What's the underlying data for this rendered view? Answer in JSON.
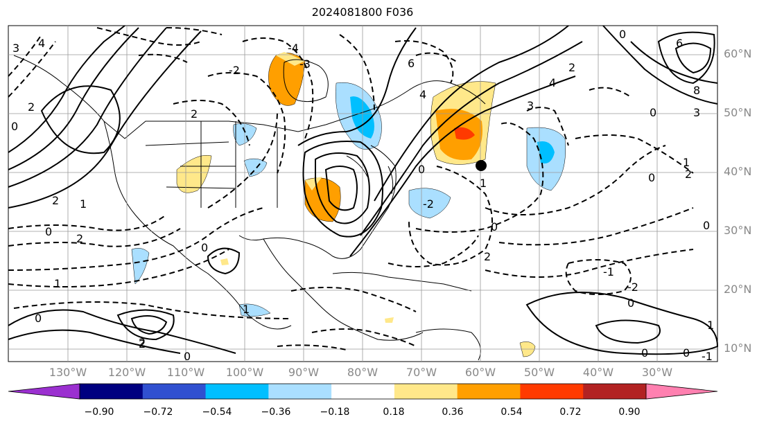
{
  "title": "2024081800 F036",
  "lat_labels": [
    "60°N",
    "50°N",
    "40°N",
    "30°N",
    "20°N",
    "10°N"
  ],
  "lon_labels": [
    "130°W",
    "120°W",
    "110°W",
    "100°W",
    "90°W",
    "80°W",
    "70°W",
    "60°W",
    "50°W",
    "40°W",
    "30°W"
  ],
  "colorbar": {
    "tick_labels": [
      "−0.90",
      "−0.72",
      "−0.54",
      "−0.36",
      "−0.18",
      "0.18",
      "0.36",
      "0.54",
      "0.72",
      "0.90"
    ],
    "colors": [
      "#9b30d0",
      "#000080",
      "#3050d0",
      "#00bfff",
      "#aadfff",
      "#ffffff",
      "#ffe88a",
      "#ff9f00",
      "#ff3a00",
      "#b22222",
      "#ff80b0"
    ]
  },
  "contour_labels": {
    "c1": "3",
    "c2": "4",
    "c3": "2",
    "c4": "0",
    "c5": "2",
    "c6": "1",
    "c7": "0",
    "c8": "2",
    "c9": "1",
    "c10": "0",
    "c11": "2",
    "c12": "0",
    "c13": "1",
    "c14": "2",
    "c15": "0",
    "c16": "-4",
    "c17": "-3",
    "c18": "-2",
    "c19": "6",
    "c20": "4",
    "c21": "3",
    "c22": "2",
    "c23": "0",
    "c24": "1",
    "c25": "-2",
    "c26": "0",
    "c27": "-1",
    "c28": "-2",
    "c29": "0",
    "c30": "2",
    "c31": "4",
    "c32": "6",
    "c33": "8",
    "c34": "3",
    "c35": "0",
    "c36": "1",
    "c37": "2",
    "c38": "0",
    "c39": "0",
    "c40": "1",
    "c41": "0",
    "c42": "0",
    "c43": "2",
    "c44": "-1",
    "c45": "0"
  }
}
